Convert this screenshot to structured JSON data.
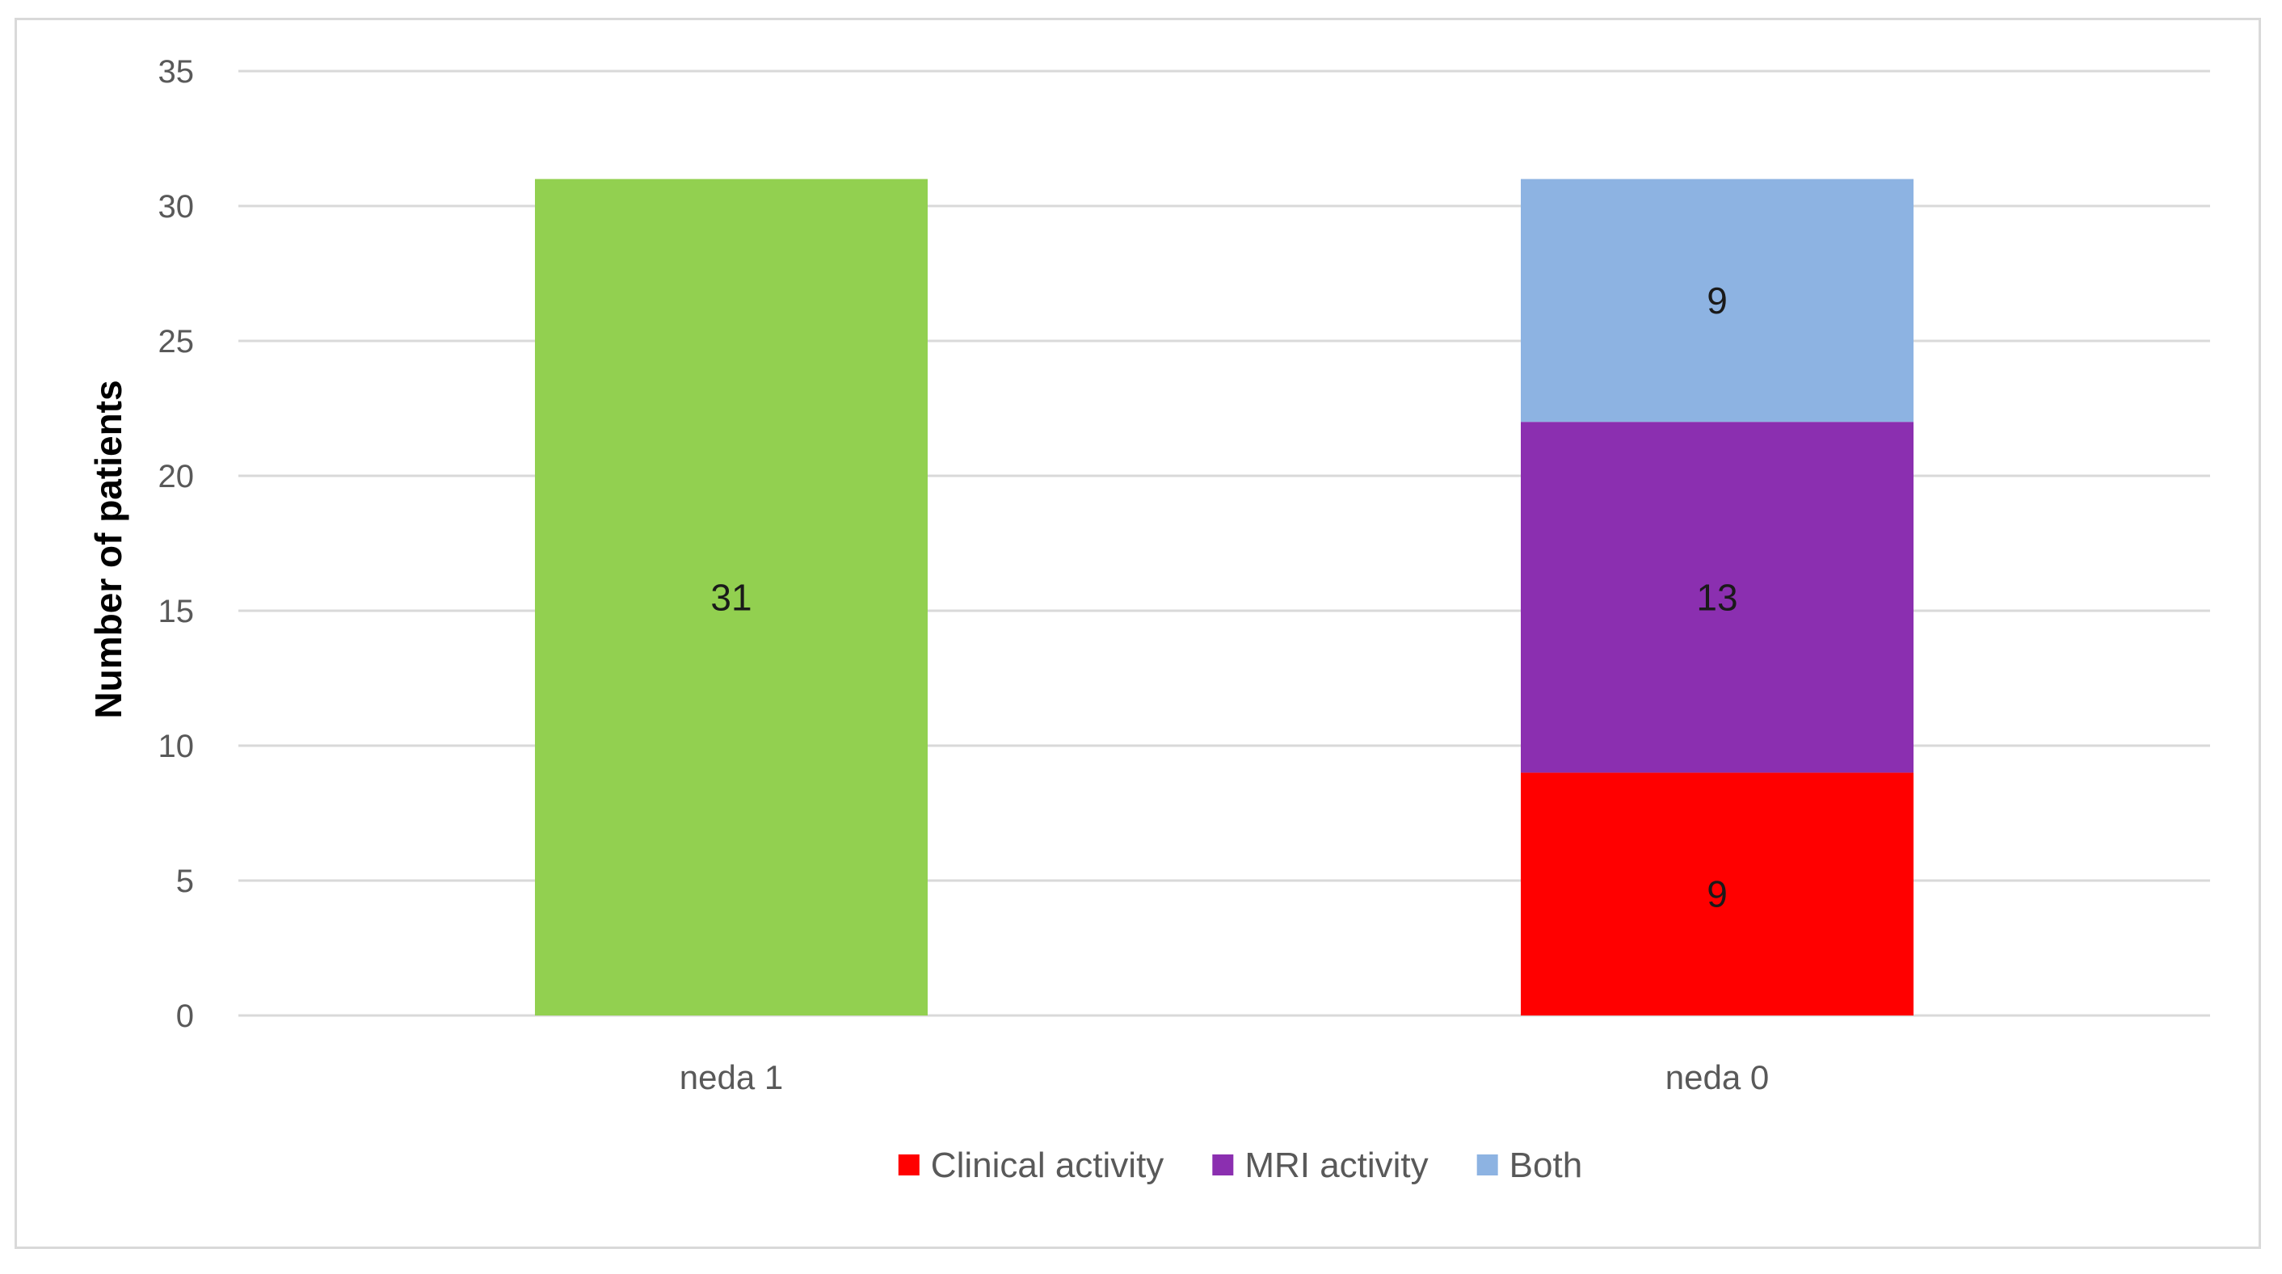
{
  "chart_data": {
    "type": "bar",
    "stacked": true,
    "categories": [
      "neda 1",
      "neda 0"
    ],
    "ylabel": "Number of patients",
    "xlabel": "",
    "title": "",
    "ylim": [
      0,
      35
    ],
    "yticks": [
      0,
      5,
      10,
      15,
      20,
      25,
      30,
      35
    ],
    "grid": true,
    "legend_position": "bottom",
    "series": [
      {
        "name": "",
        "color": "#92d050",
        "values": [
          31,
          0
        ],
        "labels": [
          "31",
          ""
        ],
        "in_legend": false
      },
      {
        "name": "Clinical activity",
        "color": "#ff0000",
        "values": [
          0,
          9
        ],
        "labels": [
          "",
          "9"
        ],
        "in_legend": true
      },
      {
        "name": "MRI activity",
        "color": "#8b2fb0",
        "values": [
          0,
          13
        ],
        "labels": [
          "",
          "13"
        ],
        "in_legend": true
      },
      {
        "name": "Both",
        "color": "#8db3e2",
        "values": [
          0,
          9
        ],
        "labels": [
          "",
          "9"
        ],
        "in_legend": true
      }
    ]
  }
}
